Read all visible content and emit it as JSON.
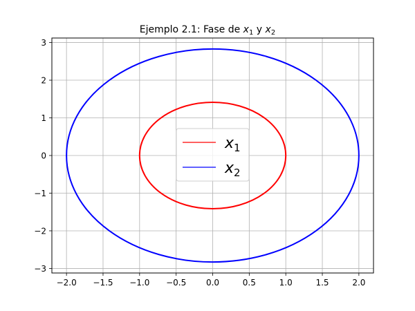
{
  "chart_data": {
    "type": "line",
    "title": "Ejemplo 2.1: Fase de x₁ y x₂",
    "title_parts": {
      "prefix": "Ejemplo 2.1: Fase de ",
      "v1": "x",
      "s1": "1",
      "mid": " y ",
      "v2": "x",
      "s2": "2"
    },
    "xlabel": "",
    "ylabel": "",
    "xlim": [
      -2.2,
      2.2
    ],
    "ylim": [
      -3.12,
      3.12
    ],
    "xticks": [
      -2.0,
      -1.5,
      -1.0,
      -0.5,
      0.0,
      0.5,
      1.0,
      1.5,
      2.0
    ],
    "xtick_labels": [
      "−2.0",
      "−1.5",
      "−1.0",
      "−0.5",
      "0.0",
      "0.5",
      "1.0",
      "1.5",
      "2.0"
    ],
    "yticks": [
      -3,
      -2,
      -1,
      0,
      1,
      2,
      3
    ],
    "ytick_labels": [
      "−3",
      "−2",
      "−1",
      "0",
      "1",
      "2",
      "3"
    ],
    "grid": true,
    "legend_position": "center",
    "series": [
      {
        "name": "x1",
        "var": "x",
        "sub": "1",
        "color": "#ff0000",
        "shape": "ellipse",
        "center": [
          0,
          0
        ],
        "rx": 1.0,
        "ry": 1.414
      },
      {
        "name": "x2",
        "var": "x",
        "sub": "2",
        "color": "#0000ff",
        "shape": "ellipse",
        "center": [
          0,
          0
        ],
        "rx": 2.0,
        "ry": 2.828
      }
    ]
  }
}
